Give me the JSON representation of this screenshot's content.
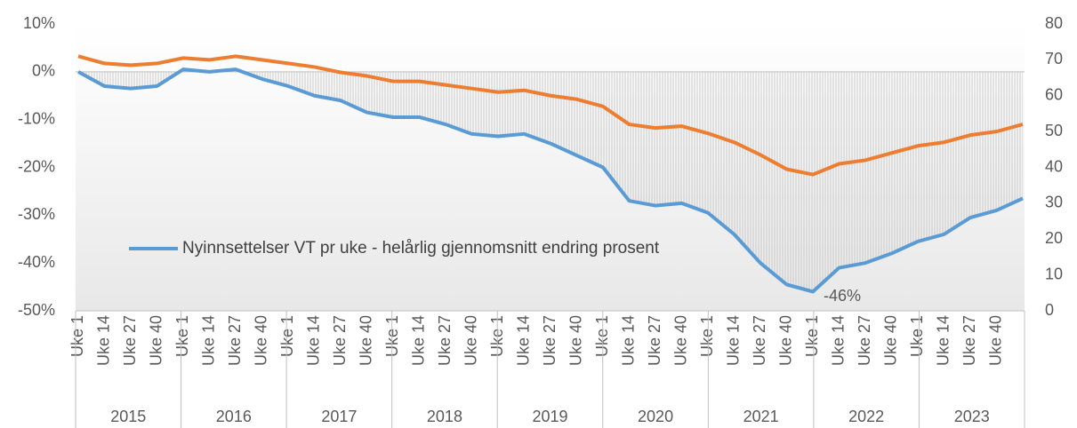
{
  "chart_data": {
    "type": "line",
    "categories": [
      "Uke 1",
      "Uke 14",
      "Uke 27",
      "Uke 40",
      "Uke 1",
      "Uke 14",
      "Uke 27",
      "Uke 40",
      "Uke 1",
      "Uke 14",
      "Uke 27",
      "Uke 40",
      "Uke 1",
      "Uke 14",
      "Uke 27",
      "Uke 40",
      "Uke 1",
      "Uke 14",
      "Uke 27",
      "Uke 40",
      "Uke 1",
      "Uke 14",
      "Uke 27",
      "Uke 40",
      "Uke 1",
      "Uke 14",
      "Uke 27",
      "Uke 40",
      "Uke 1",
      "Uke 14",
      "Uke 27",
      "Uke 40",
      "Uke 1",
      "Uke 14",
      "Uke 27",
      "Uke 40",
      null
    ],
    "years": [
      "2015",
      "2016",
      "2017",
      "2018",
      "2019",
      "2020",
      "2021",
      "2022",
      "2023"
    ],
    "series": [
      {
        "name": "Nyinnsettelser VT pr uke - helårlig gjennomsnitt endring prosent",
        "color": "#5b9bd5",
        "values": [
          0,
          -3,
          -3.5,
          -3,
          0.5,
          0,
          0.5,
          -1.5,
          -3,
          -5,
          -6,
          -8.5,
          -9.5,
          -9.5,
          -11,
          -13,
          -13.5,
          -13,
          -15,
          -17.5,
          -20,
          -27,
          -28,
          -27.5,
          -29.5,
          -34,
          -40,
          -44.5,
          -46,
          -41,
          -40,
          -38,
          -35.5,
          -34,
          -30.5,
          -29,
          -26.5
        ]
      },
      {
        "color": "#ed7d31",
        "axis": "y2",
        "values": [
          71,
          69,
          68.5,
          69,
          70.5,
          70,
          71,
          70,
          69,
          68,
          66.5,
          65.5,
          64,
          64,
          63,
          62,
          61,
          61.5,
          60,
          59,
          57,
          52,
          51,
          51.5,
          49.5,
          47,
          43.5,
          39.5,
          38,
          41,
          42,
          44,
          46,
          47,
          49,
          50,
          52
        ]
      }
    ],
    "annotations": [
      {
        "label": "-46%",
        "value": -46
      }
    ],
    "ylim": [
      -50,
      10
    ],
    "yticks": [
      {
        "value": -50,
        "label": "-50%"
      },
      {
        "value": -40,
        "label": "-40%"
      },
      {
        "value": -30,
        "label": "-30%"
      },
      {
        "value": -20,
        "label": "-20%"
      },
      {
        "value": -10,
        "label": "-10%"
      },
      {
        "value": 0,
        "label": "0%"
      },
      {
        "value": 10,
        "label": "10%"
      }
    ],
    "y2lim": [
      0,
      80
    ],
    "y2ticks": [
      0,
      10,
      20,
      30,
      40,
      50,
      60,
      70,
      80
    ]
  }
}
